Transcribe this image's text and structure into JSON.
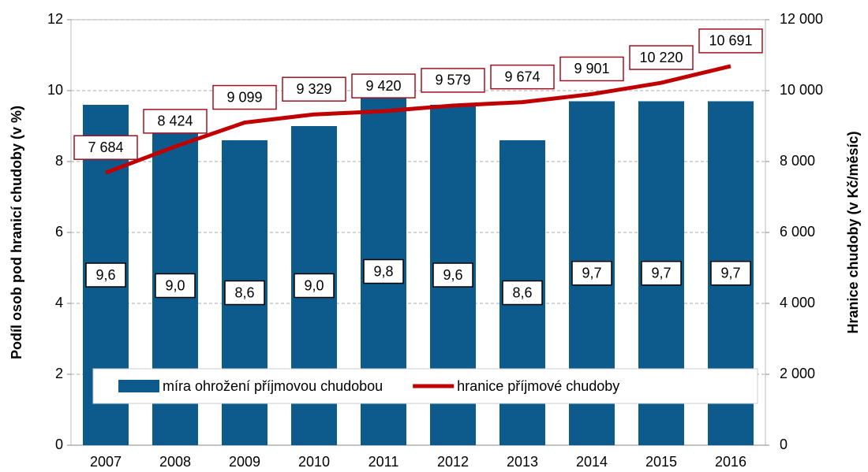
{
  "chart_data": {
    "type": "combo",
    "categories": [
      "2007",
      "2008",
      "2009",
      "2010",
      "2011",
      "2012",
      "2013",
      "2014",
      "2015",
      "2016"
    ],
    "series": [
      {
        "name": "míra ohrožení příjmovou chudobou",
        "type": "bar",
        "color": "#0d5a8c",
        "values": [
          9.6,
          9.0,
          8.6,
          9.0,
          9.8,
          9.6,
          8.6,
          9.7,
          9.7,
          9.7
        ],
        "value_labels": [
          "9,6",
          "9,0",
          "8,6",
          "9,0",
          "9,8",
          "9,6",
          "8,6",
          "9,7",
          "9,7",
          "9,7"
        ]
      },
      {
        "name": "hranice příjmové chudoby",
        "type": "line",
        "axis": "y2",
        "color": "#c00000",
        "values": [
          7684,
          8424,
          9099,
          9329,
          9420,
          9579,
          9674,
          9901,
          10220,
          10691
        ],
        "value_labels": [
          "7 684",
          "8 424",
          "9 099",
          "9 329",
          "9 420",
          "9 579",
          "9 674",
          "9 901",
          "10 220",
          "10 691"
        ]
      }
    ],
    "ylabel": "Podíl osob pod hranicí chudoby (v %)",
    "y2label": "Hranice chudoby (v Kč/měsíc)",
    "ylim": [
      0,
      12
    ],
    "yticks": [
      0,
      2,
      4,
      6,
      8,
      10,
      12
    ],
    "y2lim": [
      0,
      12000
    ],
    "y2ticks": [
      0,
      {
        "value": 2000,
        "label": "2 000"
      },
      {
        "value": 4000,
        "label": "4 000"
      },
      {
        "value": 6000,
        "label": "6 000"
      },
      {
        "value": 8000,
        "label": "8 000"
      },
      {
        "value": 10000,
        "label": "10 000"
      },
      {
        "value": 12000,
        "label": "12 000"
      }
    ],
    "grid": true,
    "legend": "bottom"
  }
}
